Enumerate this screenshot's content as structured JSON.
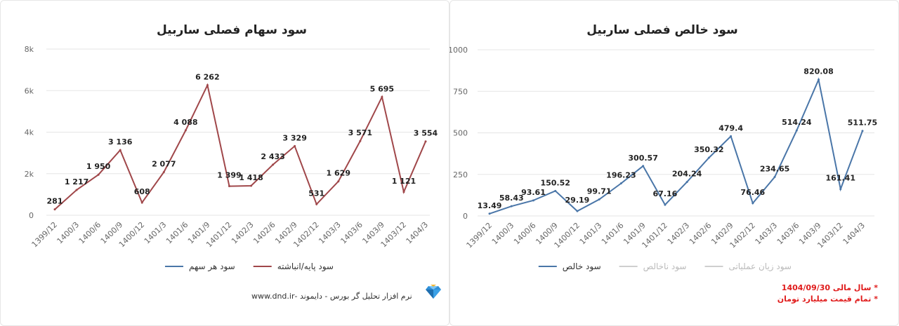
{
  "chart_data": [
    {
      "type": "line",
      "title": "سود سهام فصلی ساربیل",
      "categories": [
        "1399/12",
        "1400/3",
        "1400/6",
        "1400/9",
        "1400/12",
        "1401/3",
        "1401/6",
        "1401/9",
        "1401/12",
        "1402/3",
        "1402/6",
        "1402/9",
        "1402/12",
        "1403/3",
        "1403/6",
        "1403/9",
        "1403/12",
        "1404/3"
      ],
      "ylim": [
        0,
        8000
      ],
      "yticks": [
        0,
        2000,
        4000,
        6000,
        8000
      ],
      "ytick_labels": [
        "0",
        "2k",
        "4k",
        "6k",
        "8k"
      ],
      "grid": true,
      "legend_position": "bottom",
      "series": [
        {
          "name": "سود پایه/انباشته",
          "color": "#a0474a",
          "values": [
            281,
            1217,
            1950,
            3136,
            608,
            2077,
            4088,
            6262,
            1399,
            1418,
            2433,
            3329,
            531,
            1629,
            3571,
            5695,
            1121,
            3554
          ],
          "labels": [
            "281",
            "1 217",
            "1 950",
            "3 136",
            "608",
            "2 077",
            "4 088",
            "6 262",
            "1 399",
            "1 418",
            "2 433",
            "3 329",
            "531",
            "1 629",
            "3 571",
            "5 695",
            "1 121",
            "3 554"
          ]
        }
      ],
      "legend": [
        {
          "name": "سود پایه/انباشته",
          "color": "#a0474a",
          "muted": false
        },
        {
          "name": "سود هر سهم",
          "color": "#4a76a8",
          "muted": false
        }
      ]
    },
    {
      "type": "line",
      "title": "سود خالص فصلی ساربیل",
      "categories": [
        "1399/12",
        "1400/3",
        "1400/6",
        "1400/9",
        "1400/12",
        "1401/3",
        "1401/6",
        "1401/9",
        "1401/12",
        "1402/3",
        "1402/6",
        "1402/9",
        "1402/12",
        "1403/3",
        "1403/6",
        "1403/9",
        "1403/12",
        "1404/3"
      ],
      "ylim": [
        0,
        1000
      ],
      "yticks": [
        0,
        250,
        500,
        750,
        1000
      ],
      "ytick_labels": [
        "0",
        "250",
        "500",
        "750",
        "1000"
      ],
      "grid": true,
      "legend_position": "bottom",
      "series": [
        {
          "name": "سود خالص",
          "color": "#4a76a8",
          "values": [
            13.49,
            58.43,
            93.61,
            150.52,
            29.19,
            99.71,
            196.23,
            300.57,
            67.16,
            204.24,
            350.32,
            479.4,
            76.46,
            234.65,
            514.24,
            820.08,
            161.41,
            511.75
          ],
          "labels": [
            "13.49",
            "58.43",
            "93.61",
            "150.52",
            "29.19",
            "99.71",
            "196.23",
            "300.57",
            "67.16",
            "204.24",
            "350.32",
            "479.4",
            "76.46",
            "234.65",
            "514.24",
            "820.08",
            "161.41",
            "511.75"
          ]
        }
      ],
      "legend": [
        {
          "name": "سود زیان عملیاتی",
          "color": "#cfcfcf",
          "muted": true
        },
        {
          "name": "سود ناخالص",
          "color": "#cfcfcf",
          "muted": true
        },
        {
          "name": "سود خالص",
          "color": "#4a76a8",
          "muted": false
        }
      ]
    }
  ],
  "footer": {
    "text": "نرم افزار تحلیل گر بورس - دایموند -www.dnd.ir"
  },
  "notes": {
    "line1": "* سال مالی 1404/09/30",
    "line2": "* تمام قیمت میلیارد تومان"
  },
  "icons": {
    "logo": "diamond-logo-icon"
  }
}
